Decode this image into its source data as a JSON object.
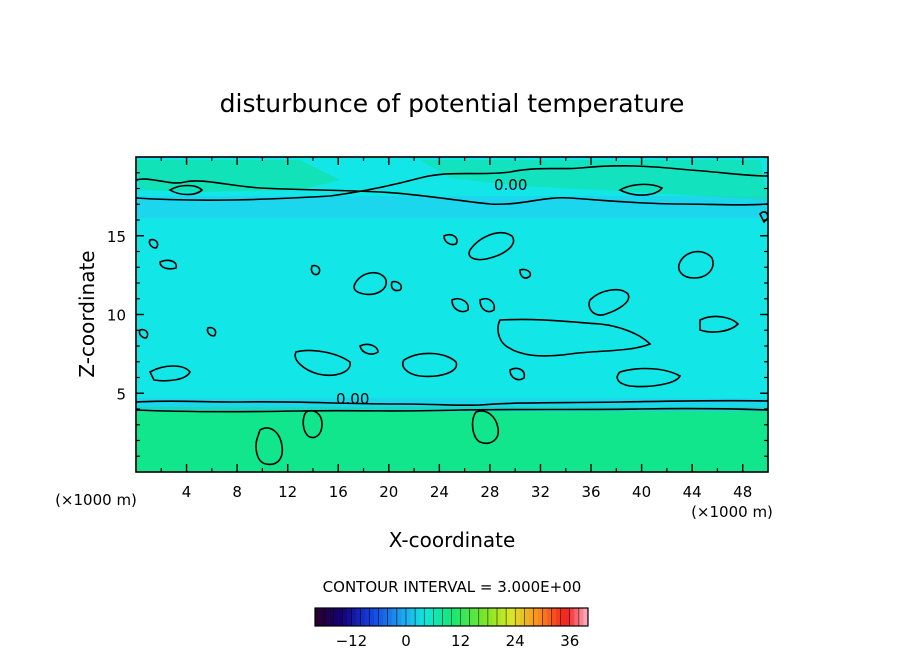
{
  "chart_data": {
    "type": "heatmap",
    "title": "disturbunce of potential temperature",
    "xlabel": "X-coordinate",
    "ylabel": "Z-coordinate",
    "x_unit": "(×1000 m)",
    "x_unit_right": "(×1000 m)",
    "xlim": [
      0,
      50
    ],
    "ylim": [
      0,
      20
    ],
    "x_ticks": [
      "4",
      "8",
      "12",
      "16",
      "20",
      "24",
      "28",
      "32",
      "36",
      "40",
      "44",
      "48"
    ],
    "y_ticks": [
      "5",
      "10",
      "15"
    ],
    "contour_labels": [
      "0.00",
      "0.00"
    ],
    "contour_interval_text": "CONTOUR INTERVAL = 3.000E+00",
    "colorbar": {
      "ticks": [
        "−12",
        "0",
        "12",
        "24",
        "36"
      ],
      "range": [
        -20,
        40
      ]
    },
    "colors": {
      "upper_field": "#13e6e6",
      "lower_field": "#12e68c",
      "patch_green": "#12e0a4",
      "patch_blue": "#22c8f0"
    }
  }
}
